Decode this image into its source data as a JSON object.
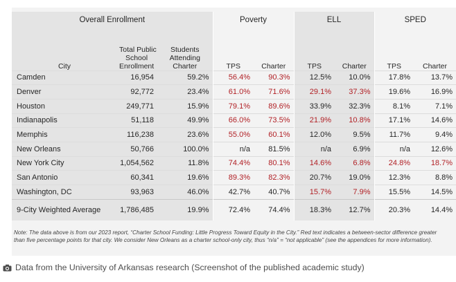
{
  "table": {
    "group_headers": {
      "overall": "Overall Enrollment",
      "poverty": "Poverty",
      "ell": "ELL",
      "sped": "SPED"
    },
    "column_headers": {
      "city": "City",
      "total_lines": [
        "Total Public",
        "School",
        "Enrollment"
      ],
      "charter_lines": [
        "Students",
        "Attending",
        "Charter"
      ],
      "tps": "TPS",
      "charter": "Charter"
    },
    "rows": [
      {
        "city": "Camden",
        "total": "16,954",
        "charter_pct": "59.2%",
        "pov_tps": "56.4%",
        "pov_charter": "90.3%",
        "ell_tps": "12.5%",
        "ell_charter": "10.0%",
        "sped_tps": "17.8%",
        "sped_charter": "13.7%",
        "red": [
          "pov_tps",
          "pov_charter"
        ]
      },
      {
        "city": "Denver",
        "total": "92,772",
        "charter_pct": "23.4%",
        "pov_tps": "61.0%",
        "pov_charter": "71.6%",
        "ell_tps": "29.1%",
        "ell_charter": "37.3%",
        "sped_tps": "19.6%",
        "sped_charter": "16.9%",
        "red": [
          "pov_tps",
          "pov_charter",
          "ell_tps",
          "ell_charter"
        ]
      },
      {
        "city": "Houston",
        "total": "249,771",
        "charter_pct": "15.9%",
        "pov_tps": "79.1%",
        "pov_charter": "89.6%",
        "ell_tps": "33.9%",
        "ell_charter": "32.3%",
        "sped_tps": "8.1%",
        "sped_charter": "7.1%",
        "red": [
          "pov_tps",
          "pov_charter"
        ]
      },
      {
        "city": "Indianapolis",
        "total": "51,118",
        "charter_pct": "49.9%",
        "pov_tps": "66.0%",
        "pov_charter": "73.5%",
        "ell_tps": "21.9%",
        "ell_charter": "10.8%",
        "sped_tps": "17.1%",
        "sped_charter": "14.6%",
        "red": [
          "pov_tps",
          "pov_charter",
          "ell_tps",
          "ell_charter"
        ]
      },
      {
        "city": "Memphis",
        "total": "116,238",
        "charter_pct": "23.6%",
        "pov_tps": "55.0%",
        "pov_charter": "60.1%",
        "ell_tps": "12.0%",
        "ell_charter": "9.5%",
        "sped_tps": "11.7%",
        "sped_charter": "9.4%",
        "red": [
          "pov_tps",
          "pov_charter"
        ]
      },
      {
        "city": "New Orleans",
        "total": "50,766",
        "charter_pct": "100.0%",
        "pov_tps": "n/a",
        "pov_charter": "81.5%",
        "ell_tps": "n/a",
        "ell_charter": "6.9%",
        "sped_tps": "n/a",
        "sped_charter": "12.6%",
        "red": []
      },
      {
        "city": "New York City",
        "total": "1,054,562",
        "charter_pct": "11.8%",
        "pov_tps": "74.4%",
        "pov_charter": "80.1%",
        "ell_tps": "14.6%",
        "ell_charter": "6.8%",
        "sped_tps": "24.8%",
        "sped_charter": "18.7%",
        "red": [
          "pov_tps",
          "pov_charter",
          "ell_tps",
          "ell_charter",
          "sped_tps",
          "sped_charter"
        ]
      },
      {
        "city": "San Antonio",
        "total": "60,341",
        "charter_pct": "19.6%",
        "pov_tps": "89.3%",
        "pov_charter": "82.3%",
        "ell_tps": "20.7%",
        "ell_charter": "19.0%",
        "sped_tps": "12.3%",
        "sped_charter": "8.8%",
        "red": [
          "pov_tps",
          "pov_charter"
        ]
      },
      {
        "city": "Washington, DC",
        "total": "93,963",
        "charter_pct": "46.0%",
        "pov_tps": "42.7%",
        "pov_charter": "40.7%",
        "ell_tps": "15.7%",
        "ell_charter": "7.9%",
        "sped_tps": "15.5%",
        "sped_charter": "14.5%",
        "red": [
          "ell_tps",
          "ell_charter"
        ]
      }
    ],
    "average": {
      "city": "9-City Weighted Average",
      "total": "1,786,485",
      "charter_pct": "19.9%",
      "pov_tps": "72.4%",
      "pov_charter": "74.4%",
      "ell_tps": "18.3%",
      "ell_charter": "12.7%",
      "sped_tps": "20.3%",
      "sped_charter": "14.4%",
      "red": []
    },
    "red_color": "#b11f24",
    "shade_color": "#e4e4e4"
  },
  "note": "Note: The data above is from our 2023 report, “Charter School Funding: Little Progress Toward Equity in the City.” Red text indicates a between-sector difference greater than five percentage points for that city. We consider New Orleans as a charter school-only city, thus “n/a” = “not applicable” (see the appendices for more information).",
  "caption": {
    "icon": "camera-icon",
    "text": "Data from the University of Arkansas research (Screenshot of the published academic study)"
  }
}
